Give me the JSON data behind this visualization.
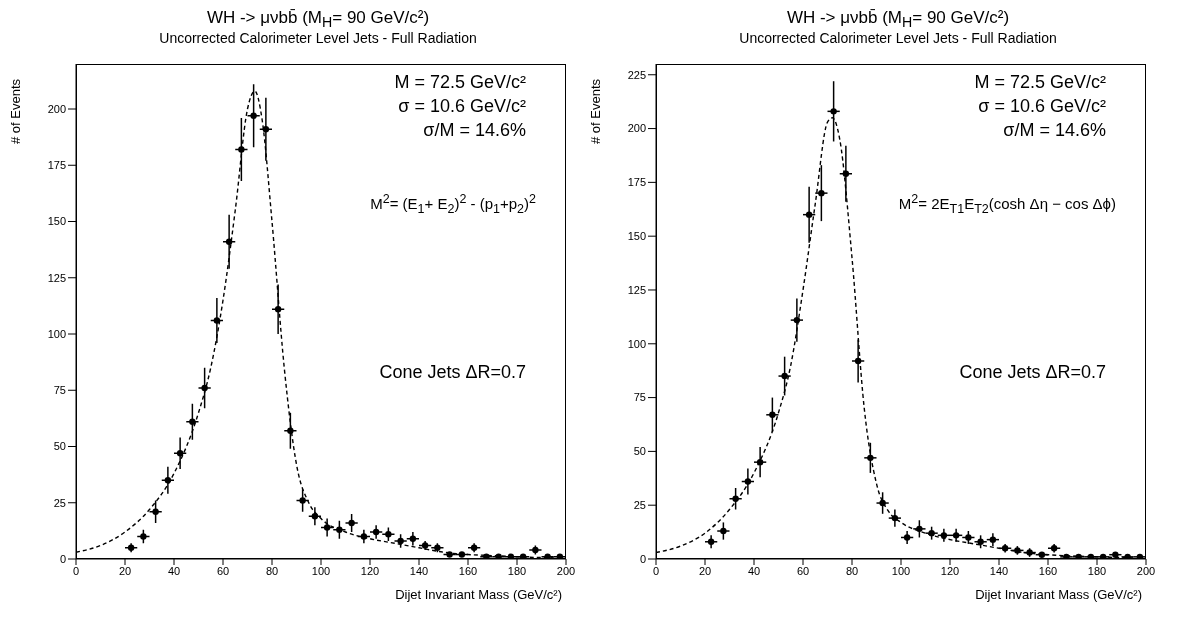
{
  "chart_data": [
    {
      "type": "scatter",
      "title": "WH ->  μνbb̄ (M$_{H}$= 90 GeV/c²)",
      "subtitle": "Uncorrected Calorimeter Level Jets - Full Radiation",
      "xlabel": "Dijet Invariant Mass (GeV/c²)",
      "ylabel": "# of Events",
      "xlim": [
        0,
        200
      ],
      "xticks": [
        0,
        20,
        40,
        60,
        80,
        100,
        120,
        140,
        160,
        180,
        200
      ],
      "ylim": [
        0,
        220
      ],
      "yticks": [
        0,
        25,
        50,
        75,
        100,
        125,
        150,
        175,
        200
      ],
      "grid": false,
      "legend": false,
      "annotations": [
        "M = 72.5 GeV/c²",
        "σ = 10.6 GeV/c²",
        "σ/M = 14.6%",
        "M$^{2}$= (E$_{1}$+ E$_{2}$)$^{2}$ - (p$_{1}$+p$_{2}$)$^{2}$",
        "Cone Jets ΔR=0.7"
      ],
      "series": [
        {
          "color": "#000000",
          "x": [
            22.5,
            27.5,
            32.5,
            37.5,
            42.5,
            47.5,
            52.5,
            57.5,
            62.5,
            67.5,
            72.5,
            77.5,
            82.5,
            87.5,
            92.5,
            97.5,
            102.5,
            107.5,
            112.5,
            117.5,
            122.5,
            127.5,
            132.5,
            137.5,
            142.5,
            147.5,
            152.5,
            157.5,
            162.5,
            167.5,
            172.5,
            177.5,
            182.5,
            187.5,
            192.5,
            197.5
          ],
          "values": [
            5,
            10,
            21,
            35,
            47,
            61,
            76,
            106,
            141,
            182,
            197,
            191,
            111,
            57,
            26,
            19,
            14,
            13,
            16,
            10,
            12,
            11,
            8,
            9,
            6,
            5,
            2,
            2,
            5,
            1,
            1,
            1,
            1,
            4,
            1,
            1
          ],
          "errors": [
            2,
            3,
            5,
            6,
            7,
            8,
            9,
            10,
            12,
            14,
            14,
            14,
            11,
            8,
            5,
            4,
            4,
            4,
            4,
            3,
            3,
            3,
            3,
            3,
            2,
            2,
            1,
            1,
            2,
            null,
            null,
            null,
            null,
            2,
            null,
            null
          ],
          "xerrors": [
            2.5,
            2.5,
            2.5,
            2.5,
            2.5,
            2.5,
            2.5,
            2.5,
            2.5,
            2.5,
            2.5,
            2.5,
            2.5,
            2.5,
            2.5,
            2.5,
            2.5,
            2.5,
            2.5,
            2.5,
            2.5,
            2.5,
            2.5,
            2.5,
            2.5,
            2.5,
            2.5,
            2.5,
            2.5,
            2.5,
            2.5,
            2.5,
            2.5,
            2.5,
            2.5,
            2.5
          ]
        },
        {
          "type": "line",
          "color": "#000000",
          "line_style": "dashed",
          "x": [
            0,
            10,
            20,
            30,
            40,
            50,
            55,
            60,
            65,
            70,
            73,
            76,
            80,
            85,
            90,
            95,
            100,
            110,
            120,
            130,
            140,
            150,
            160,
            170,
            180,
            195
          ],
          "values": [
            3,
            6,
            12,
            22,
            38,
            65,
            85,
            115,
            155,
            200,
            208,
            195,
            150,
            85,
            42,
            25,
            18,
            12,
            9,
            7,
            5,
            3,
            2,
            1.5,
            1,
            0.5
          ]
        }
      ]
    },
    {
      "type": "scatter",
      "title": "WH ->  μνbb̄ (M$_{H}$= 90 GeV/c²)",
      "subtitle": "Uncorrected Calorimeter Level Jets - Full Radiation",
      "xlabel": "Dijet Invariant Mass (GeV/c²)",
      "ylabel": "# of Events",
      "xlim": [
        0,
        200
      ],
      "xticks": [
        0,
        20,
        40,
        60,
        80,
        100,
        120,
        140,
        160,
        180,
        200
      ],
      "ylim": [
        0,
        230
      ],
      "yticks": [
        0,
        25,
        50,
        75,
        100,
        125,
        150,
        175,
        200,
        225
      ],
      "grid": false,
      "legend": false,
      "annotations": [
        "M = 72.5 GeV/c²",
        "σ = 10.6 GeV/c²",
        "σ/M = 14.6%",
        "M$^{2}$= 2E$_{T1}$E$_{T2}$(cosh Δη − cos Δϕ)",
        "Cone Jets ΔR=0.7"
      ],
      "series": [
        {
          "color": "#000000",
          "x": [
            22.5,
            27.5,
            32.5,
            37.5,
            42.5,
            47.5,
            52.5,
            57.5,
            62.5,
            67.5,
            72.5,
            77.5,
            82.5,
            87.5,
            92.5,
            97.5,
            102.5,
            107.5,
            112.5,
            117.5,
            122.5,
            127.5,
            132.5,
            137.5,
            142.5,
            147.5,
            152.5,
            157.5,
            162.5,
            167.5,
            172.5,
            177.5,
            182.5,
            187.5,
            192.5,
            197.5
          ],
          "values": [
            8,
            13,
            28,
            36,
            45,
            67,
            85,
            111,
            160,
            170,
            208,
            179,
            92,
            47,
            26,
            19,
            10,
            14,
            12,
            11,
            11,
            10,
            8,
            9,
            5,
            4,
            3,
            2,
            5,
            1,
            1,
            1,
            1,
            2,
            1,
            1
          ],
          "errors": [
            3,
            4,
            5,
            6,
            7,
            8,
            9,
            10,
            13,
            13,
            14,
            13,
            10,
            7,
            5,
            4,
            3,
            4,
            3,
            3,
            3,
            3,
            3,
            3,
            2,
            2,
            2,
            1,
            2,
            null,
            null,
            null,
            null,
            1,
            null,
            null
          ],
          "xerrors": [
            2.5,
            2.5,
            2.5,
            2.5,
            2.5,
            2.5,
            2.5,
            2.5,
            2.5,
            2.5,
            2.5,
            2.5,
            2.5,
            2.5,
            2.5,
            2.5,
            2.5,
            2.5,
            2.5,
            2.5,
            2.5,
            2.5,
            2.5,
            2.5,
            2.5,
            2.5,
            2.5,
            2.5,
            2.5,
            2.5,
            2.5,
            2.5,
            2.5,
            2.5,
            2.5,
            2.5
          ]
        },
        {
          "type": "line",
          "color": "#000000",
          "line_style": "dashed",
          "x": [
            0,
            10,
            20,
            30,
            40,
            50,
            55,
            60,
            65,
            70,
            72,
            75,
            80,
            85,
            90,
            95,
            100,
            110,
            120,
            130,
            140,
            150,
            160,
            180,
            195
          ],
          "values": [
            3,
            6,
            12,
            23,
            40,
            68,
            90,
            125,
            165,
            203,
            205,
            195,
            140,
            70,
            35,
            22,
            17,
            12,
            9,
            7,
            5,
            3,
            2,
            1,
            0.5
          ]
        }
      ]
    }
  ]
}
